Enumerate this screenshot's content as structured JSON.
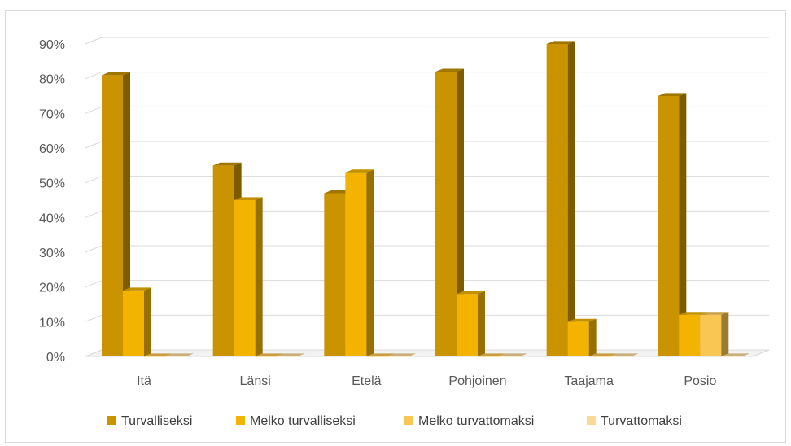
{
  "chart_data": {
    "type": "bar",
    "categories": [
      "Itä",
      "Länsi",
      "Etelä",
      "Pohjoinen",
      "Taajama",
      "Posio"
    ],
    "series": [
      {
        "name": "Turvalliseksi",
        "values": [
          81,
          55,
          47,
          82,
          90,
          75
        ]
      },
      {
        "name": "Melko turvalliseksi",
        "values": [
          19,
          45,
          53,
          18,
          10,
          12
        ]
      },
      {
        "name": "Melko turvattomaksi",
        "values": [
          0,
          0,
          0,
          0,
          0,
          12
        ]
      },
      {
        "name": "Turvattomaksi",
        "values": [
          0,
          0,
          0,
          0,
          0,
          0
        ]
      }
    ],
    "y_ticks": [
      "0%",
      "10%",
      "20%",
      "30%",
      "40%",
      "50%",
      "60%",
      "70%",
      "80%",
      "90%"
    ],
    "ylim": [
      0,
      90
    ],
    "grid": true,
    "legend": "bottom",
    "colors": [
      "#c99400",
      "#f2b400",
      "#f9c653",
      "#fad99a"
    ],
    "bar_style": "3d-column"
  }
}
